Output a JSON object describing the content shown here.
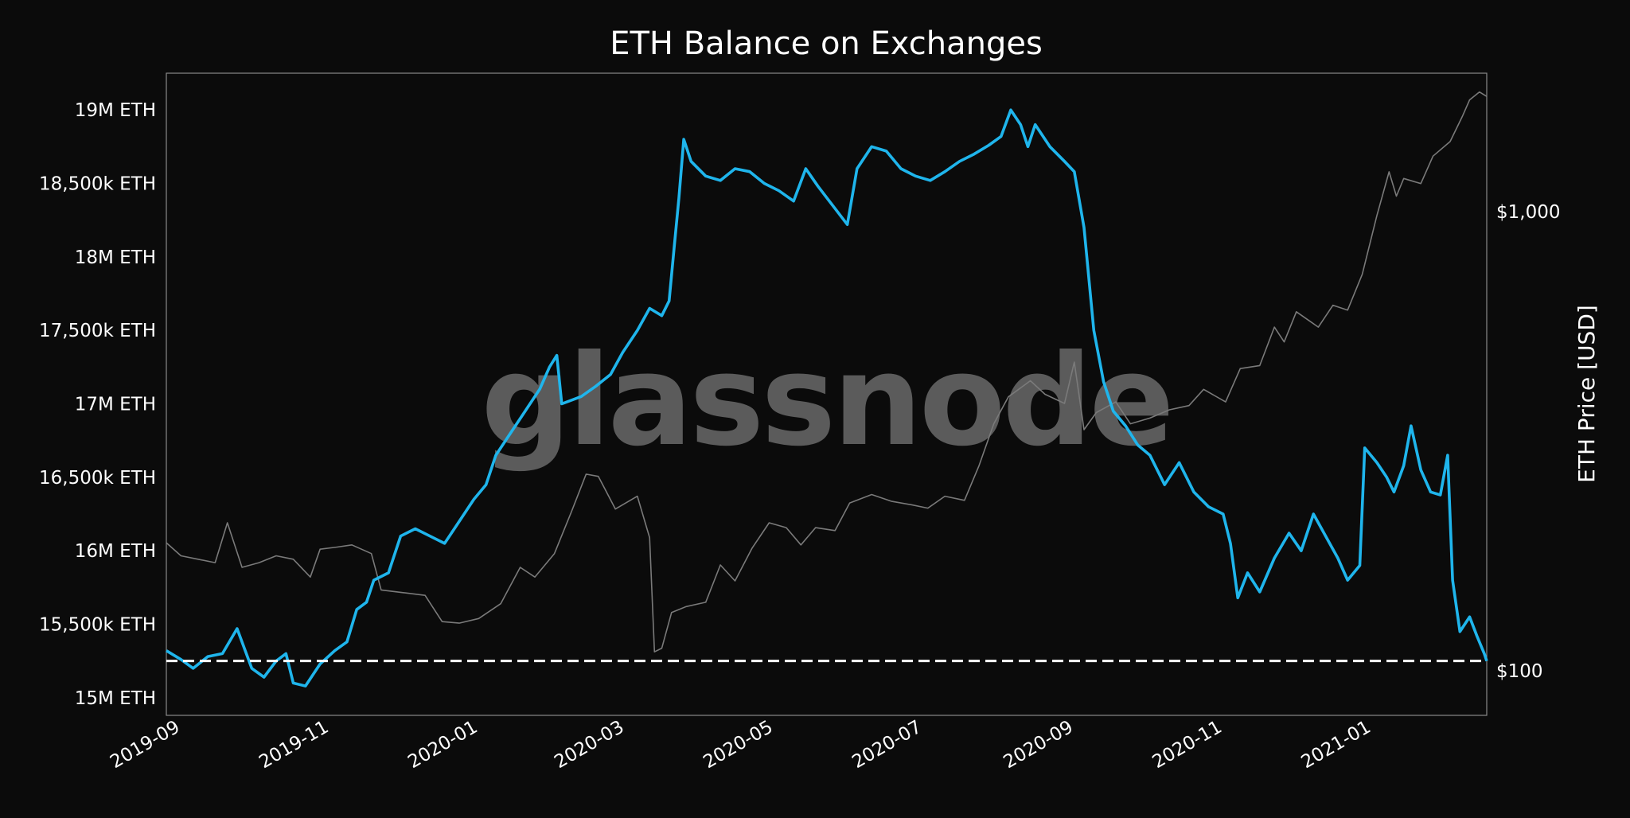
{
  "chart_data": {
    "type": "line",
    "title": "ETH Balance on Exchanges",
    "watermark": "glassnode",
    "xlabel": "",
    "ylabel_left": "",
    "ylabel_right": "ETH Price [USD]",
    "x_ticks": [
      "2019-09",
      "2019-11",
      "2020-01",
      "2020-03",
      "2020-05",
      "2020-07",
      "2020-09",
      "2020-11",
      "2021-01"
    ],
    "x_range": [
      "2019-08-26",
      "2021-02-17"
    ],
    "left_axis": {
      "ylim": [
        14880000,
        19250000
      ],
      "ticks": [
        {
          "value": 15000000,
          "label": "15M ETH"
        },
        {
          "value": 15500000,
          "label": "15,500k ETH"
        },
        {
          "value": 16000000,
          "label": "16M ETH"
        },
        {
          "value": 16500000,
          "label": "16,500k ETH"
        },
        {
          "value": 17000000,
          "label": "17M ETH"
        },
        {
          "value": 17500000,
          "label": "17,500k ETH"
        },
        {
          "value": 18000000,
          "label": "18M ETH"
        },
        {
          "value": 18500000,
          "label": "18,500k ETH"
        },
        {
          "value": 19000000,
          "label": "19M ETH"
        }
      ]
    },
    "right_axis": {
      "scale": "log",
      "ylim": [
        80,
        2000
      ],
      "ticks": [
        {
          "value": 100,
          "label": "$100"
        },
        {
          "value": 1000,
          "label": "$1,000"
        }
      ]
    },
    "reference_line": {
      "value": 15250000,
      "style": "dashed",
      "color": "#ffffff"
    },
    "series": [
      {
        "name": "",
        "axis": "left",
        "color": "#1fb5ec",
        "points": [
          [
            "2019-08-26",
            15320000
          ],
          [
            "2019-09-01",
            15260000
          ],
          [
            "2019-09-06",
            15200000
          ],
          [
            "2019-09-12",
            15280000
          ],
          [
            "2019-09-18",
            15300000
          ],
          [
            "2019-09-24",
            15470000
          ],
          [
            "2019-09-30",
            15200000
          ],
          [
            "2019-10-05",
            15140000
          ],
          [
            "2019-10-10",
            15250000
          ],
          [
            "2019-10-14",
            15300000
          ],
          [
            "2019-10-17",
            15100000
          ],
          [
            "2019-10-22",
            15080000
          ],
          [
            "2019-10-28",
            15230000
          ],
          [
            "2019-11-03",
            15320000
          ],
          [
            "2019-11-08",
            15380000
          ],
          [
            "2019-11-12",
            15600000
          ],
          [
            "2019-11-16",
            15650000
          ],
          [
            "2019-11-19",
            15800000
          ],
          [
            "2019-11-25",
            15850000
          ],
          [
            "2019-11-30",
            16100000
          ],
          [
            "2019-12-06",
            16150000
          ],
          [
            "2019-12-12",
            16100000
          ],
          [
            "2019-12-18",
            16050000
          ],
          [
            "2019-12-24",
            16200000
          ],
          [
            "2019-12-30",
            16350000
          ],
          [
            "2020-01-04",
            16450000
          ],
          [
            "2020-01-08",
            16650000
          ],
          [
            "2020-01-14",
            16800000
          ],
          [
            "2020-01-20",
            16950000
          ],
          [
            "2020-01-26",
            17100000
          ],
          [
            "2020-01-30",
            17250000
          ],
          [
            "2020-02-02",
            17330000
          ],
          [
            "2020-02-04",
            17000000
          ],
          [
            "2020-02-12",
            17050000
          ],
          [
            "2020-02-18",
            17120000
          ],
          [
            "2020-02-24",
            17200000
          ],
          [
            "2020-02-29",
            17350000
          ],
          [
            "2020-03-06",
            17500000
          ],
          [
            "2020-03-11",
            17650000
          ],
          [
            "2020-03-16",
            17600000
          ],
          [
            "2020-03-19",
            17700000
          ],
          [
            "2020-03-21",
            18050000
          ],
          [
            "2020-03-23",
            18400000
          ],
          [
            "2020-03-25",
            18800000
          ],
          [
            "2020-03-28",
            18650000
          ],
          [
            "2020-04-03",
            18550000
          ],
          [
            "2020-04-09",
            18520000
          ],
          [
            "2020-04-15",
            18600000
          ],
          [
            "2020-04-21",
            18580000
          ],
          [
            "2020-04-27",
            18500000
          ],
          [
            "2020-05-03",
            18450000
          ],
          [
            "2020-05-09",
            18380000
          ],
          [
            "2020-05-14",
            18600000
          ],
          [
            "2020-05-19",
            18480000
          ],
          [
            "2020-05-25",
            18350000
          ],
          [
            "2020-05-31",
            18220000
          ],
          [
            "2020-06-04",
            18600000
          ],
          [
            "2020-06-10",
            18750000
          ],
          [
            "2020-06-16",
            18720000
          ],
          [
            "2020-06-22",
            18600000
          ],
          [
            "2020-06-28",
            18550000
          ],
          [
            "2020-07-04",
            18520000
          ],
          [
            "2020-07-10",
            18580000
          ],
          [
            "2020-07-16",
            18650000
          ],
          [
            "2020-07-22",
            18700000
          ],
          [
            "2020-07-28",
            18760000
          ],
          [
            "2020-08-02",
            18820000
          ],
          [
            "2020-08-06",
            19000000
          ],
          [
            "2020-08-10",
            18900000
          ],
          [
            "2020-08-13",
            18750000
          ],
          [
            "2020-08-16",
            18900000
          ],
          [
            "2020-08-22",
            18750000
          ],
          [
            "2020-08-28",
            18650000
          ],
          [
            "2020-09-01",
            18580000
          ],
          [
            "2020-09-05",
            18200000
          ],
          [
            "2020-09-09",
            17500000
          ],
          [
            "2020-09-13",
            17150000
          ],
          [
            "2020-09-17",
            16950000
          ],
          [
            "2020-09-22",
            16850000
          ],
          [
            "2020-09-27",
            16720000
          ],
          [
            "2020-10-02",
            16650000
          ],
          [
            "2020-10-08",
            16450000
          ],
          [
            "2020-10-14",
            16600000
          ],
          [
            "2020-10-20",
            16400000
          ],
          [
            "2020-10-26",
            16300000
          ],
          [
            "2020-11-01",
            16250000
          ],
          [
            "2020-11-04",
            16050000
          ],
          [
            "2020-11-07",
            15680000
          ],
          [
            "2020-11-11",
            15850000
          ],
          [
            "2020-11-16",
            15720000
          ],
          [
            "2020-11-22",
            15950000
          ],
          [
            "2020-11-28",
            16120000
          ],
          [
            "2020-12-03",
            16000000
          ],
          [
            "2020-12-08",
            16250000
          ],
          [
            "2020-12-13",
            16100000
          ],
          [
            "2020-12-18",
            15950000
          ],
          [
            "2020-12-22",
            15800000
          ],
          [
            "2020-12-27",
            15900000
          ],
          [
            "2020-12-29",
            16700000
          ],
          [
            "2021-01-03",
            16600000
          ],
          [
            "2021-01-07",
            16500000
          ],
          [
            "2021-01-10",
            16400000
          ],
          [
            "2021-01-14",
            16580000
          ],
          [
            "2021-01-17",
            16850000
          ],
          [
            "2021-01-21",
            16550000
          ],
          [
            "2021-01-25",
            16400000
          ],
          [
            "2021-01-29",
            16380000
          ],
          [
            "2021-02-01",
            16650000
          ],
          [
            "2021-02-03",
            15800000
          ],
          [
            "2021-02-06",
            15450000
          ],
          [
            "2021-02-10",
            15550000
          ],
          [
            "2021-02-13",
            15420000
          ],
          [
            "2021-02-16",
            15300000
          ],
          [
            "2021-02-17",
            15250000
          ]
        ]
      },
      {
        "name": "",
        "axis": "right",
        "color": "#7a7a7a",
        "points": [
          [
            "2019-08-26",
            190
          ],
          [
            "2019-09-01",
            178
          ],
          [
            "2019-09-08",
            175
          ],
          [
            "2019-09-15",
            172
          ],
          [
            "2019-09-20",
            210
          ],
          [
            "2019-09-26",
            168
          ],
          [
            "2019-10-03",
            172
          ],
          [
            "2019-10-10",
            178
          ],
          [
            "2019-10-17",
            175
          ],
          [
            "2019-10-24",
            160
          ],
          [
            "2019-10-28",
            184
          ],
          [
            "2019-11-04",
            186
          ],
          [
            "2019-11-10",
            188
          ],
          [
            "2019-11-18",
            180
          ],
          [
            "2019-11-22",
            150
          ],
          [
            "2019-12-01",
            148
          ],
          [
            "2019-12-10",
            146
          ],
          [
            "2019-12-17",
            128
          ],
          [
            "2019-12-24",
            127
          ],
          [
            "2020-01-01",
            130
          ],
          [
            "2020-01-10",
            140
          ],
          [
            "2020-01-18",
            168
          ],
          [
            "2020-01-24",
            160
          ],
          [
            "2020-02-01",
            180
          ],
          [
            "2020-02-08",
            222
          ],
          [
            "2020-02-14",
            268
          ],
          [
            "2020-02-19",
            265
          ],
          [
            "2020-02-26",
            225
          ],
          [
            "2020-03-06",
            240
          ],
          [
            "2020-03-11",
            195
          ],
          [
            "2020-03-13",
            110
          ],
          [
            "2020-03-16",
            112
          ],
          [
            "2020-03-20",
            134
          ],
          [
            "2020-03-26",
            138
          ],
          [
            "2020-04-03",
            141
          ],
          [
            "2020-04-09",
            170
          ],
          [
            "2020-04-15",
            157
          ],
          [
            "2020-04-22",
            185
          ],
          [
            "2020-04-29",
            210
          ],
          [
            "2020-05-06",
            205
          ],
          [
            "2020-05-12",
            188
          ],
          [
            "2020-05-18",
            205
          ],
          [
            "2020-05-26",
            202
          ],
          [
            "2020-06-01",
            232
          ],
          [
            "2020-06-10",
            242
          ],
          [
            "2020-06-18",
            234
          ],
          [
            "2020-06-26",
            230
          ],
          [
            "2020-07-03",
            226
          ],
          [
            "2020-07-10",
            240
          ],
          [
            "2020-07-18",
            235
          ],
          [
            "2020-07-24",
            280
          ],
          [
            "2020-07-30",
            345
          ],
          [
            "2020-08-05",
            395
          ],
          [
            "2020-08-14",
            428
          ],
          [
            "2020-08-20",
            400
          ],
          [
            "2020-08-28",
            382
          ],
          [
            "2020-09-01",
            470
          ],
          [
            "2020-09-05",
            335
          ],
          [
            "2020-09-10",
            365
          ],
          [
            "2020-09-18",
            385
          ],
          [
            "2020-09-24",
            345
          ],
          [
            "2020-10-02",
            355
          ],
          [
            "2020-10-10",
            370
          ],
          [
            "2020-10-18",
            378
          ],
          [
            "2020-10-24",
            410
          ],
          [
            "2020-11-02",
            385
          ],
          [
            "2020-11-08",
            455
          ],
          [
            "2020-11-16",
            462
          ],
          [
            "2020-11-22",
            560
          ],
          [
            "2020-11-26",
            520
          ],
          [
            "2020-12-01",
            605
          ],
          [
            "2020-12-10",
            560
          ],
          [
            "2020-12-16",
            625
          ],
          [
            "2020-12-22",
            610
          ],
          [
            "2020-12-28",
            730
          ],
          [
            "2021-01-03",
            980
          ],
          [
            "2021-01-08",
            1220
          ],
          [
            "2021-01-11",
            1080
          ],
          [
            "2021-01-14",
            1180
          ],
          [
            "2021-01-21",
            1150
          ],
          [
            "2021-01-26",
            1320
          ],
          [
            "2021-02-02",
            1420
          ],
          [
            "2021-02-07",
            1610
          ],
          [
            "2021-02-10",
            1750
          ],
          [
            "2021-02-14",
            1820
          ],
          [
            "2021-02-17",
            1780
          ]
        ]
      }
    ]
  }
}
